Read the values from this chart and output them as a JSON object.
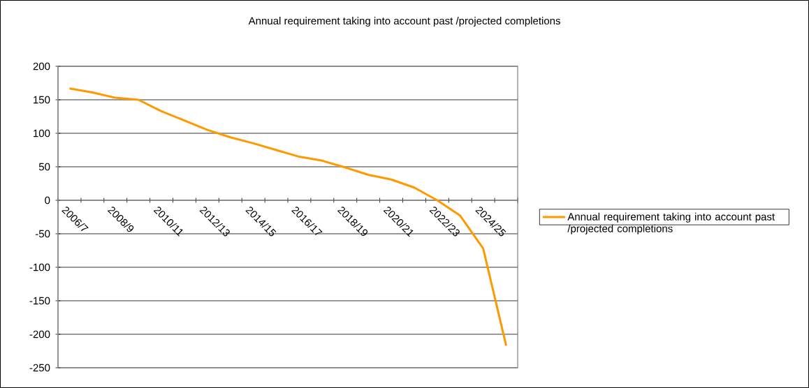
{
  "chart_data": {
    "type": "line",
    "title": "Annual requirement taking into account past /projected completions",
    "categories": [
      "2006/7",
      null,
      "2008/9",
      null,
      "2010/11",
      null,
      "2012/13",
      null,
      "2014/15",
      null,
      "2016/17",
      null,
      "2018/19",
      null,
      "2020/21",
      null,
      "2022/23",
      null,
      "2024/25",
      null
    ],
    "series": [
      {
        "name": "Annual requirement taking into account past /projected completions",
        "color": "#ff9900",
        "values": [
          167,
          161,
          153,
          150,
          133,
          119,
          105,
          94,
          85,
          75,
          65,
          59,
          49,
          38,
          31,
          19,
          0,
          -23,
          -72,
          -217
        ]
      }
    ],
    "ylim": [
      -250,
      200
    ],
    "yticks": [
      -250,
      -200,
      -150,
      -100,
      -50,
      0,
      50,
      100,
      150,
      200
    ],
    "grid": "y",
    "legend": "right",
    "marker": "none",
    "line_style": "solid"
  }
}
